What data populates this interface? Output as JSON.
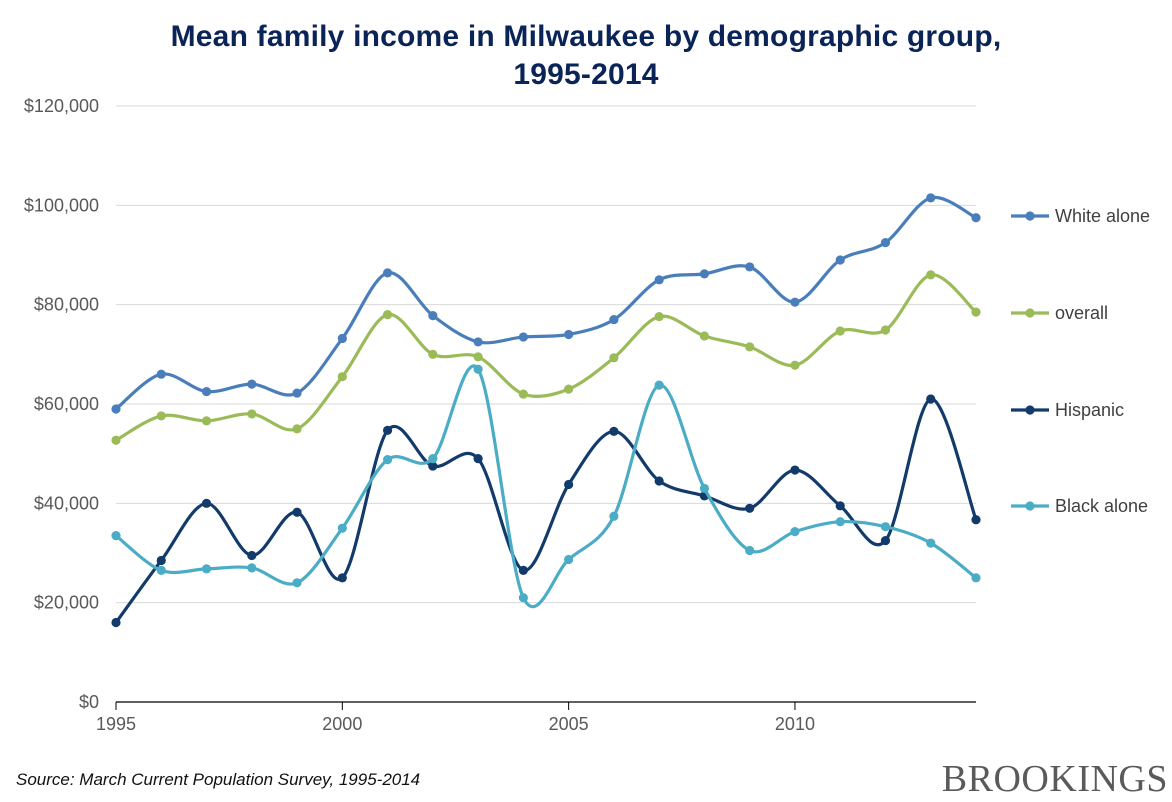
{
  "chart_data": {
    "type": "line",
    "title_lines": [
      "Mean family income in Milwaukee by demographic group,",
      "1995-2014"
    ],
    "xlabel": "",
    "ylabel": "",
    "xlim": [
      1995,
      2014
    ],
    "ylim": [
      0,
      120000
    ],
    "x_ticks": [
      1995,
      2000,
      2005,
      2010
    ],
    "y_ticks": [
      0,
      20000,
      40000,
      60000,
      80000,
      100000,
      120000
    ],
    "y_tick_labels": [
      "$0",
      "$20,000",
      "$40,000",
      "$60,000",
      "$80,000",
      "$100,000",
      "$120,000"
    ],
    "grid": "horizontal",
    "legend_position": "right",
    "x": [
      1995,
      1996,
      1997,
      1998,
      1999,
      2000,
      2001,
      2002,
      2003,
      2004,
      2005,
      2006,
      2007,
      2008,
      2009,
      2010,
      2011,
      2012,
      2013,
      2014
    ],
    "series": [
      {
        "name": "White alone",
        "color": "#4a7ebb",
        "values": [
          59000,
          66000,
          62500,
          64000,
          62200,
          73200,
          86400,
          77800,
          72500,
          73500,
          74000,
          77000,
          85000,
          86200,
          87600,
          80500,
          89000,
          92500,
          101500,
          97500
        ]
      },
      {
        "name": "overall",
        "color": "#9bbb59",
        "values": [
          52700,
          57600,
          56600,
          58000,
          55000,
          65500,
          78000,
          70000,
          69500,
          62000,
          63000,
          69300,
          77600,
          73700,
          71500,
          67800,
          74700,
          74900,
          86000,
          78500
        ]
      },
      {
        "name": "Hispanic",
        "color": "#123b6b",
        "values": [
          16000,
          28500,
          40000,
          29500,
          38200,
          25000,
          54700,
          47500,
          49000,
          26500,
          43800,
          54500,
          44500,
          41500,
          39000,
          46700,
          39500,
          32500,
          61000,
          36700
        ]
      },
      {
        "name": "Black alone",
        "color": "#4bacc6",
        "values": [
          33500,
          26500,
          26800,
          27000,
          24000,
          35000,
          48800,
          49000,
          67000,
          21000,
          28700,
          37400,
          63800,
          43000,
          30500,
          34300,
          36300,
          35300,
          32000,
          25000
        ]
      }
    ],
    "source": "Source: March Current Population Survey, 1995-2014"
  },
  "brand": "BROOKINGS",
  "colors": {
    "title": "#0b2458",
    "grid": "#d9d9d9",
    "axis": "#000000",
    "tick_text": "#595959",
    "legend_text": "#404040"
  }
}
